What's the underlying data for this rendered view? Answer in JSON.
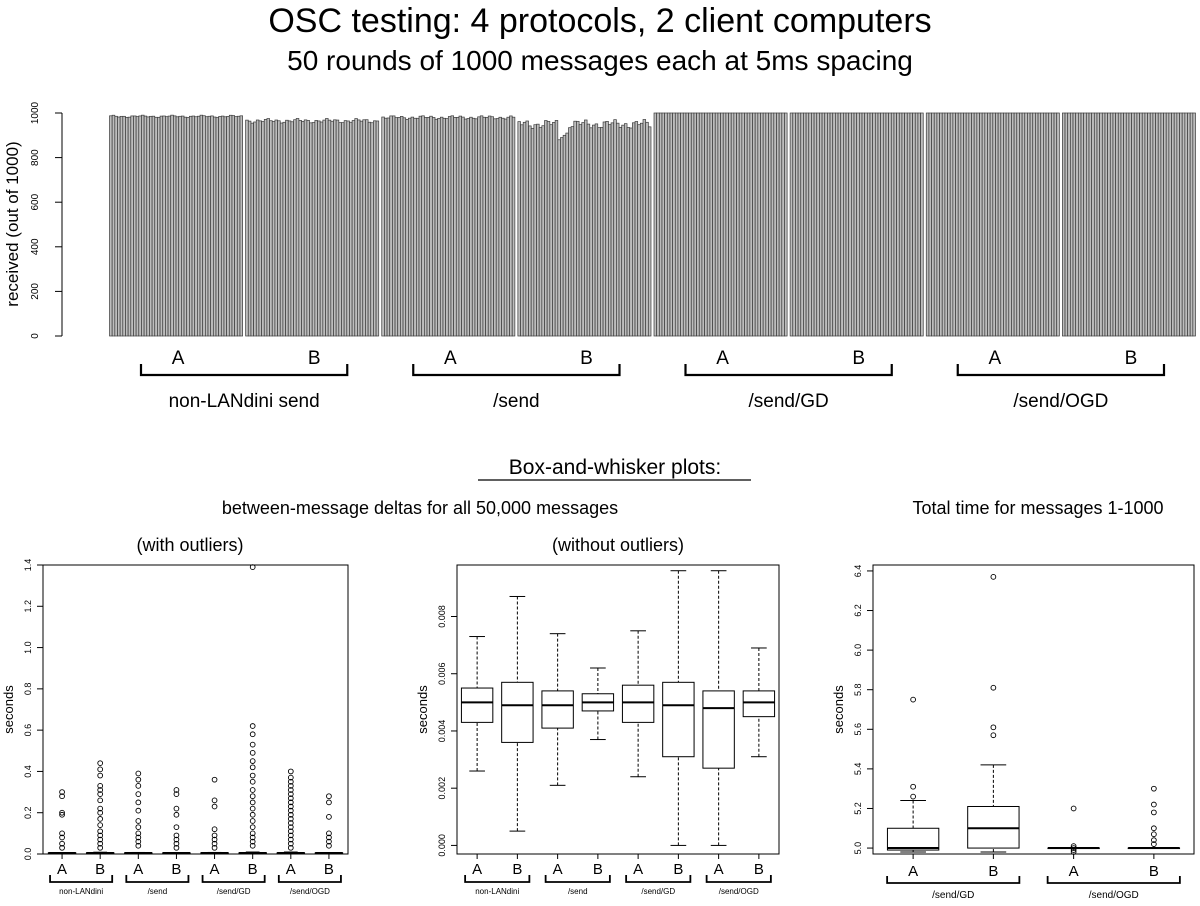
{
  "header": {
    "title": "OSC testing: 4 protocols, 2 client computers",
    "subtitle": "50 rounds of 1000 messages each at 5ms spacing"
  },
  "section": {
    "box_heading": "Box-and-whisker plots:",
    "deltas_heading": "between-message deltas for all 50,000 messages",
    "with_outliers": "(with outliers)",
    "without_outliers": "(without outliers)",
    "total_heading": "Total time for messages 1-1000"
  },
  "chart_data": [
    {
      "id": "received",
      "type": "bar",
      "ylabel": "received (out of 1000)",
      "ylim": [
        0,
        1000
      ],
      "yticks": [
        "0",
        "200",
        "400",
        "600",
        "800",
        "1000"
      ],
      "client_labels": [
        "A",
        "B"
      ],
      "groups": [
        {
          "label": "non-LANdini send",
          "series": [
            {
              "client": "A",
              "level": 985,
              "spread": 6,
              "dip": 0
            },
            {
              "client": "B",
              "level": 965,
              "spread": 12,
              "dip": 0
            }
          ]
        },
        {
          "label": "/send",
          "series": [
            {
              "client": "A",
              "level": 980,
              "spread": 10,
              "dip": 0
            },
            {
              "client": "B",
              "level": 950,
              "spread": 25,
              "dip": 880
            }
          ]
        },
        {
          "label": "/send/GD",
          "series": [
            {
              "client": "A",
              "level": 1000,
              "spread": 0,
              "dip": 0
            },
            {
              "client": "B",
              "level": 1000,
              "spread": 0,
              "dip": 0
            }
          ]
        },
        {
          "label": "/send/OGD",
          "series": [
            {
              "client": "A",
              "level": 1000,
              "spread": 0,
              "dip": 0
            },
            {
              "client": "B",
              "level": 1000,
              "spread": 0,
              "dip": 0
            }
          ]
        }
      ],
      "rounds_per_series": 50
    },
    {
      "id": "deltas-with-outliers",
      "type": "box",
      "ylabel": "seconds",
      "ylim": [
        0,
        1.4
      ],
      "yticks": [
        "0.0",
        "0.2",
        "0.4",
        "0.6",
        "0.8",
        "1.0",
        "1.2",
        "1.4"
      ],
      "group_labels": [
        "non-LANdini",
        "/send",
        "/send/GD",
        "/send/OGD"
      ],
      "boxes": [
        {
          "label": "A",
          "min": 0.0026,
          "q1": 0.0043,
          "median": 0.005,
          "q3": 0.0055,
          "max": 0.0073,
          "outliers": [
            0.3,
            0.28,
            0.2,
            0.19,
            0.1,
            0.08,
            0.05,
            0.03
          ]
        },
        {
          "label": "B",
          "min": 0.0005,
          "q1": 0.0036,
          "median": 0.0049,
          "q3": 0.0057,
          "max": 0.0087,
          "outliers": [
            0.44,
            0.41,
            0.38,
            0.33,
            0.31,
            0.29,
            0.26,
            0.22,
            0.2,
            0.17,
            0.14,
            0.11,
            0.09,
            0.07,
            0.05,
            0.03
          ]
        },
        {
          "label": "A",
          "min": 0.0021,
          "q1": 0.0041,
          "median": 0.0049,
          "q3": 0.0054,
          "max": 0.0074,
          "outliers": [
            0.39,
            0.36,
            0.33,
            0.29,
            0.25,
            0.21,
            0.16,
            0.13,
            0.1,
            0.08,
            0.06,
            0.04
          ]
        },
        {
          "label": "B",
          "min": 0.0037,
          "q1": 0.0047,
          "median": 0.005,
          "q3": 0.0053,
          "max": 0.0062,
          "outliers": [
            0.31,
            0.29,
            0.22,
            0.19,
            0.13,
            0.09,
            0.07,
            0.05,
            0.03
          ]
        },
        {
          "label": "A",
          "min": 0.0024,
          "q1": 0.0043,
          "median": 0.005,
          "q3": 0.0056,
          "max": 0.0075,
          "outliers": [
            0.36,
            0.26,
            0.23,
            0.12,
            0.09,
            0.07,
            0.05,
            0.03
          ]
        },
        {
          "label": "B",
          "min": 0.0,
          "q1": 0.0031,
          "median": 0.0049,
          "q3": 0.0057,
          "max": 0.0096,
          "outliers": [
            1.39,
            0.62,
            0.58,
            0.53,
            0.49,
            0.45,
            0.42,
            0.38,
            0.35,
            0.31,
            0.28,
            0.25,
            0.22,
            0.19,
            0.16,
            0.13,
            0.1,
            0.08,
            0.06,
            0.04
          ]
        },
        {
          "label": "A",
          "min": 0.0,
          "q1": 0.0027,
          "median": 0.0048,
          "q3": 0.0054,
          "max": 0.0096,
          "outliers": [
            0.4,
            0.37,
            0.35,
            0.33,
            0.31,
            0.29,
            0.27,
            0.25,
            0.23,
            0.21,
            0.19,
            0.17,
            0.15,
            0.13,
            0.11,
            0.09,
            0.07,
            0.05,
            0.03
          ]
        },
        {
          "label": "B",
          "min": 0.0031,
          "q1": 0.0045,
          "median": 0.005,
          "q3": 0.0054,
          "max": 0.0069,
          "outliers": [
            0.28,
            0.25,
            0.18,
            0.1,
            0.08,
            0.06,
            0.04
          ]
        }
      ]
    },
    {
      "id": "deltas-without-outliers",
      "type": "box",
      "ylabel": "seconds",
      "ylim": [
        -0.0003,
        0.0098
      ],
      "ytick_values": [
        0,
        0.002,
        0.004,
        0.006,
        0.008
      ],
      "yticks": [
        "0.000",
        "0.002",
        "0.004",
        "0.006",
        "0.008"
      ],
      "group_labels": [
        "non-LANdini",
        "/send",
        "/send/GD",
        "/send/OGD"
      ],
      "boxes": [
        {
          "label": "A",
          "min": 0.0026,
          "q1": 0.0043,
          "median": 0.005,
          "q3": 0.0055,
          "max": 0.0073
        },
        {
          "label": "B",
          "min": 0.0005,
          "q1": 0.0036,
          "median": 0.0049,
          "q3": 0.0057,
          "max": 0.0087
        },
        {
          "label": "A",
          "min": 0.0021,
          "q1": 0.0041,
          "median": 0.0049,
          "q3": 0.0054,
          "max": 0.0074
        },
        {
          "label": "B",
          "min": 0.0037,
          "q1": 0.0047,
          "median": 0.005,
          "q3": 0.0053,
          "max": 0.0062
        },
        {
          "label": "A",
          "min": 0.0024,
          "q1": 0.0043,
          "median": 0.005,
          "q3": 0.0056,
          "max": 0.0075
        },
        {
          "label": "B",
          "min": 0.0,
          "q1": 0.0031,
          "median": 0.0049,
          "q3": 0.0057,
          "max": 0.0096
        },
        {
          "label": "A",
          "min": 0.0,
          "q1": 0.0027,
          "median": 0.0048,
          "q3": 0.0054,
          "max": 0.0096
        },
        {
          "label": "B",
          "min": 0.0031,
          "q1": 0.0045,
          "median": 0.005,
          "q3": 0.0054,
          "max": 0.0069
        }
      ]
    },
    {
      "id": "total-time",
      "type": "box",
      "ylabel": "seconds",
      "ylim": [
        4.97,
        6.43
      ],
      "ytick_values": [
        5.0,
        5.2,
        5.4,
        5.6,
        5.8,
        6.0,
        6.2,
        6.4
      ],
      "yticks": [
        "5.0",
        "5.2",
        "5.4",
        "5.6",
        "5.8",
        "6.0",
        "6.2",
        "6.4"
      ],
      "group_labels": [
        "/send/GD",
        "/send/OGD"
      ],
      "boxes": [
        {
          "label": "A",
          "min": 4.98,
          "q1": 4.99,
          "median": 5.0,
          "q3": 5.1,
          "max": 5.24,
          "outliers": [
            5.75,
            5.31,
            5.26
          ]
        },
        {
          "label": "B",
          "min": 4.98,
          "q1": 5.0,
          "median": 5.1,
          "q3": 5.21,
          "max": 5.42,
          "outliers": [
            6.37,
            5.81,
            5.61,
            5.57
          ]
        },
        {
          "label": "A",
          "min": 5.0,
          "q1": 5.0,
          "median": 5.0,
          "q3": 5.0,
          "max": 5.0,
          "outliers": [
            5.2,
            5.01,
            5.0,
            4.99,
            4.98
          ]
        },
        {
          "label": "B",
          "min": 5.0,
          "q1": 5.0,
          "median": 5.0,
          "q3": 5.0,
          "max": 5.0,
          "outliers": [
            5.3,
            5.22,
            5.18,
            5.1,
            5.07,
            5.04,
            5.02
          ]
        }
      ]
    }
  ]
}
